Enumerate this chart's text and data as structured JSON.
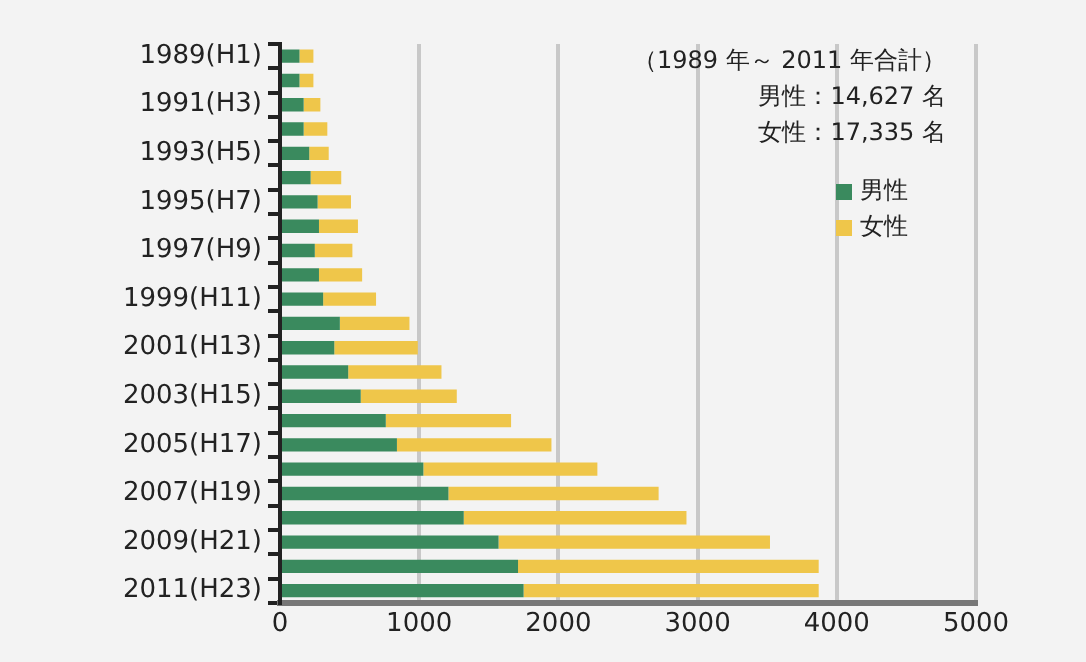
{
  "chart_data": {
    "type": "bar",
    "orientation": "horizontal",
    "stacked": true,
    "categories": [
      "1989(H1)",
      null,
      "1991(H3)",
      null,
      "1993(H5)",
      null,
      "1995(H7)",
      null,
      "1997(H9)",
      null,
      "1999(H11)",
      null,
      "2001(H13)",
      null,
      "2003(H15)",
      null,
      "2005(H17)",
      null,
      "2007(H19)",
      null,
      "2009(H21)",
      null,
      "2011(H23)"
    ],
    "series": [
      {
        "name": "男性",
        "color": "#3a8a5e",
        "values": [
          140,
          140,
          170,
          170,
          210,
          220,
          270,
          280,
          250,
          280,
          310,
          430,
          390,
          490,
          580,
          760,
          840,
          1030,
          1210,
          1320,
          1570,
          1710,
          1750
        ]
      },
      {
        "name": "女性",
        "color": "#efc64a",
        "values": [
          100,
          100,
          120,
          170,
          140,
          220,
          240,
          280,
          270,
          310,
          380,
          500,
          600,
          670,
          690,
          900,
          1110,
          1250,
          1510,
          1600,
          1950,
          2160,
          2120
        ]
      }
    ],
    "xlim": [
      0,
      5000
    ],
    "xticks": [
      0,
      1000,
      2000,
      3000,
      4000,
      5000
    ],
    "grid": "x",
    "legend": "top right",
    "annotations": [
      "（1989 年～ 2011 年合計）",
      "男性：14,627 名",
      "女性：17,335 名"
    ]
  }
}
